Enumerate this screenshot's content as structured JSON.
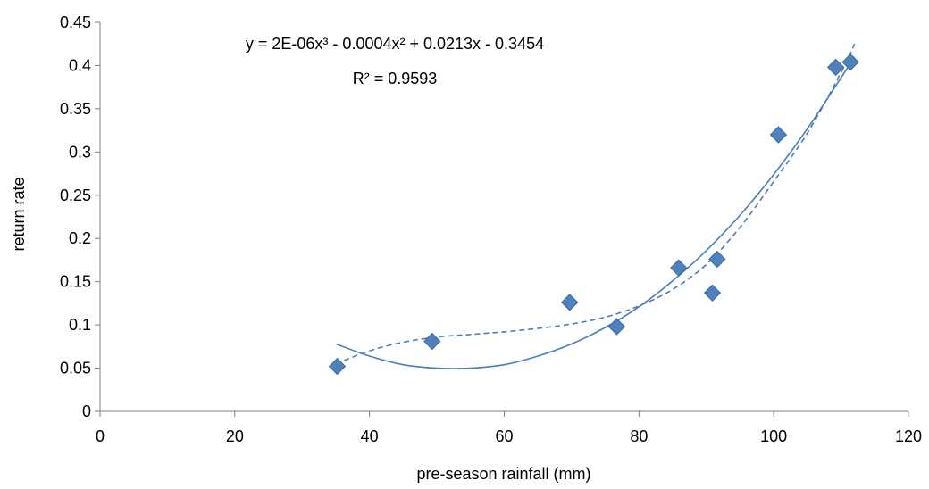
{
  "chart_data": {
    "type": "scatter",
    "title": "",
    "xlabel": "pre-season rainfall (mm)",
    "ylabel": "return rate",
    "xlim": [
      0,
      120
    ],
    "ylim": [
      0,
      0.45
    ],
    "xticks": [
      0,
      20,
      40,
      60,
      80,
      100,
      120
    ],
    "yticks": [
      0,
      0.05,
      0.1,
      0.15,
      0.2,
      0.25,
      0.3,
      0.35,
      0.4,
      0.45
    ],
    "xtick_labels": [
      "0",
      "20",
      "40",
      "60",
      "80",
      "100",
      "120"
    ],
    "ytick_labels": [
      "0",
      "0.05",
      "0.1",
      "0.15",
      "0.2",
      "0.25",
      "0.3",
      "0.35",
      "0.4",
      "0.45"
    ],
    "grid": false,
    "points": {
      "x": [
        35.2,
        49.3,
        69.7,
        76.7,
        85.9,
        90.9,
        91.6,
        100.7,
        109.2,
        111.4
      ],
      "y": [
        0.052,
        0.081,
        0.126,
        0.098,
        0.166,
        0.137,
        0.176,
        0.32,
        0.398,
        0.404
      ]
    },
    "trendlines": [
      {
        "style": "solid",
        "equation_line1": "y = 2E-06x³ - 0.0004x² + 0.0213x - 0.3454",
        "equation_line2": "R² = 0.9593",
        "x": [
          35,
          40,
          45,
          50,
          55,
          60,
          65,
          70,
          75,
          80,
          85,
          90,
          95,
          100,
          105,
          110,
          112
        ],
        "y": [
          0.078,
          0.064,
          0.054,
          0.05,
          0.05,
          0.054,
          0.064,
          0.078,
          0.097,
          0.121,
          0.151,
          0.186,
          0.227,
          0.274,
          0.327,
          0.386,
          0.41
        ]
      },
      {
        "style": "dashed",
        "x": [
          35,
          40,
          45,
          50,
          55,
          60,
          65,
          70,
          75,
          80,
          85,
          90,
          95,
          100,
          105,
          110,
          112
        ],
        "y": [
          0.055,
          0.07,
          0.08,
          0.086,
          0.089,
          0.092,
          0.096,
          0.101,
          0.109,
          0.122,
          0.141,
          0.17,
          0.213,
          0.266,
          0.322,
          0.392,
          0.425
        ]
      }
    ],
    "colors": {
      "marker": "#4F81BD",
      "marker_stroke": "#3A6BA6",
      "trend": "#4A7EBB",
      "axis": "#7F7F7F"
    }
  }
}
